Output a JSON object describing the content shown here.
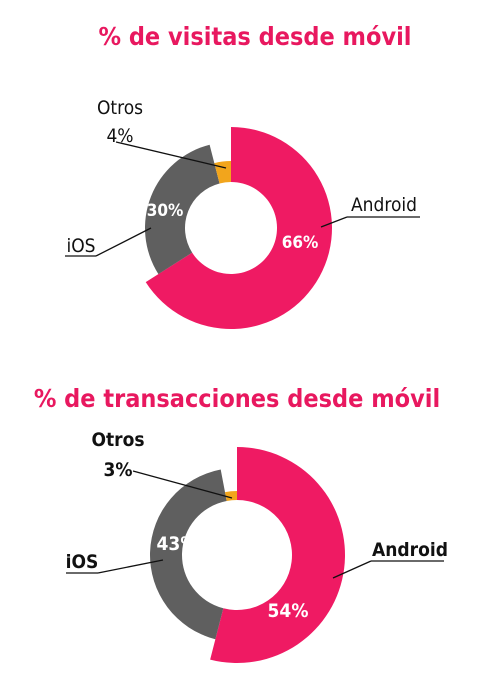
{
  "colors": {
    "title": "#e8185f",
    "android": "#ef1a63",
    "ios": "#5f5f5f",
    "otros": "#f2a51c"
  },
  "chart_data": [
    {
      "type": "pie",
      "title": "% de visitas desde móvil",
      "categories": [
        "Android",
        "iOS",
        "Otros"
      ],
      "values": [
        66,
        30,
        4
      ],
      "value_labels": [
        "66%",
        "30%",
        "4%"
      ]
    },
    {
      "type": "pie",
      "title": "% de transacciones desde móvil",
      "categories": [
        "Android",
        "iOS",
        "Otros"
      ],
      "values": [
        54,
        43,
        3
      ],
      "value_labels": [
        "54%",
        "43%",
        "3%"
      ]
    }
  ]
}
